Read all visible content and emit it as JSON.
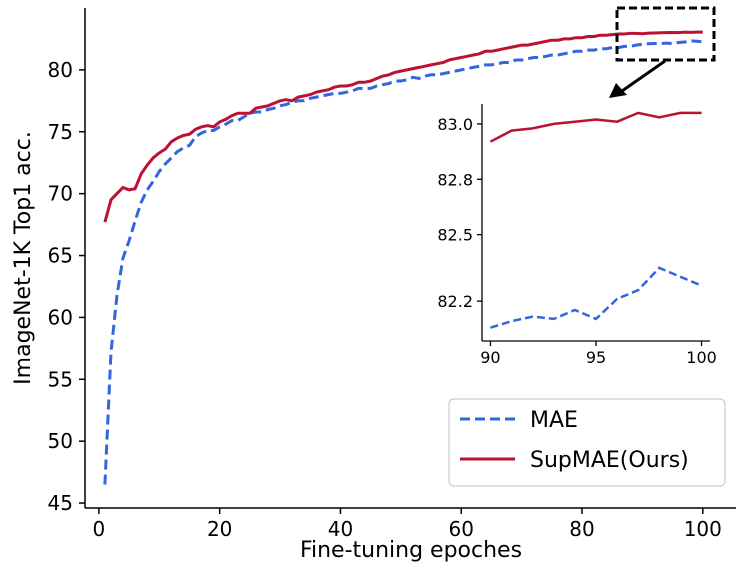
{
  "chart_data": {
    "type": "line",
    "xlabel": "Fine-tuning epoches",
    "ylabel": "ImageNet-1K Top1 acc.",
    "xlim": [
      -2.3,
      105.5
    ],
    "ylim": [
      44.6,
      85.0
    ],
    "xticks": [
      0,
      20,
      40,
      60,
      80,
      100
    ],
    "yticks": [
      45,
      50,
      55,
      60,
      65,
      70,
      75,
      80
    ],
    "legend_position": "lower-right",
    "series": [
      {
        "name": "MAE",
        "color": "#3366dd",
        "style": "dashed",
        "x": [
          1,
          2,
          3,
          4,
          5,
          6,
          7,
          8,
          9,
          10,
          11,
          12,
          13,
          14,
          15,
          16,
          17,
          18,
          19,
          20,
          21,
          22,
          23,
          24,
          25,
          26,
          27,
          28,
          29,
          30,
          31,
          32,
          33,
          34,
          35,
          36,
          37,
          38,
          39,
          40,
          41,
          42,
          43,
          44,
          45,
          46,
          47,
          48,
          49,
          50,
          51,
          52,
          53,
          54,
          55,
          56,
          57,
          58,
          59,
          60,
          61,
          62,
          63,
          64,
          65,
          66,
          67,
          68,
          69,
          70,
          71,
          72,
          73,
          74,
          75,
          76,
          77,
          78,
          79,
          80,
          81,
          82,
          83,
          84,
          85,
          86,
          87,
          88,
          89,
          90,
          91,
          92,
          93,
          94,
          95,
          96,
          97,
          98,
          99,
          100
        ],
        "y": [
          46.5,
          57.2,
          61.8,
          64.8,
          66.2,
          67.8,
          69.3,
          70.3,
          71.0,
          71.8,
          72.4,
          72.9,
          73.4,
          73.7,
          73.9,
          74.6,
          74.9,
          75.1,
          75.1,
          75.4,
          75.6,
          75.9,
          75.9,
          76.2,
          76.5,
          76.6,
          76.6,
          76.8,
          76.9,
          77.1,
          77.2,
          77.4,
          77.5,
          77.5,
          77.7,
          77.8,
          77.9,
          78.0,
          78.1,
          78.1,
          78.2,
          78.3,
          78.5,
          78.5,
          78.5,
          78.7,
          78.8,
          78.9,
          79.1,
          79.1,
          79.2,
          79.4,
          79.3,
          79.5,
          79.6,
          79.6,
          79.7,
          79.8,
          79.9,
          80.0,
          80.1,
          80.2,
          80.3,
          80.4,
          80.4,
          80.5,
          80.6,
          80.6,
          80.8,
          80.8,
          80.9,
          81.0,
          81.0,
          81.1,
          81.2,
          81.2,
          81.3,
          81.4,
          81.5,
          81.5,
          81.6,
          81.6,
          81.7,
          81.7,
          81.8,
          81.8,
          81.9,
          81.9,
          82.0,
          82.08,
          82.11,
          82.13,
          82.12,
          82.16,
          82.12,
          82.21,
          82.25,
          82.35,
          82.31,
          82.27
        ]
      },
      {
        "name": "SupMAE(Ours)",
        "color": "#bb1133",
        "style": "solid",
        "x": [
          1,
          2,
          3,
          4,
          5,
          6,
          7,
          8,
          9,
          10,
          11,
          12,
          13,
          14,
          15,
          16,
          17,
          18,
          19,
          20,
          21,
          22,
          23,
          24,
          25,
          26,
          27,
          28,
          29,
          30,
          31,
          32,
          33,
          34,
          35,
          36,
          37,
          38,
          39,
          40,
          41,
          42,
          43,
          44,
          45,
          46,
          47,
          48,
          49,
          50,
          51,
          52,
          53,
          54,
          55,
          56,
          57,
          58,
          59,
          60,
          61,
          62,
          63,
          64,
          65,
          66,
          67,
          68,
          69,
          70,
          71,
          72,
          73,
          74,
          75,
          76,
          77,
          78,
          79,
          80,
          81,
          82,
          83,
          84,
          85,
          86,
          87,
          88,
          89,
          90,
          91,
          92,
          93,
          94,
          95,
          96,
          97,
          98,
          99,
          100
        ],
        "y": [
          67.7,
          69.5,
          70.0,
          70.5,
          70.3,
          70.4,
          71.6,
          72.3,
          72.9,
          73.3,
          73.6,
          74.2,
          74.5,
          74.7,
          74.8,
          75.2,
          75.4,
          75.5,
          75.4,
          75.8,
          76.0,
          76.3,
          76.5,
          76.5,
          76.5,
          76.9,
          77.0,
          77.1,
          77.3,
          77.5,
          77.6,
          77.5,
          77.8,
          77.9,
          78.0,
          78.2,
          78.3,
          78.4,
          78.6,
          78.7,
          78.7,
          78.8,
          79.0,
          79.0,
          79.1,
          79.3,
          79.5,
          79.6,
          79.8,
          79.9,
          80.0,
          80.1,
          80.2,
          80.3,
          80.4,
          80.5,
          80.6,
          80.8,
          80.9,
          81.0,
          81.1,
          81.2,
          81.3,
          81.5,
          81.5,
          81.6,
          81.7,
          81.8,
          81.9,
          82.0,
          82.0,
          82.1,
          82.2,
          82.3,
          82.4,
          82.4,
          82.5,
          82.5,
          82.6,
          82.6,
          82.7,
          82.7,
          82.8,
          82.8,
          82.85,
          82.9,
          82.9,
          82.95,
          82.95,
          82.92,
          82.97,
          82.98,
          83.0,
          83.01,
          83.02,
          83.01,
          83.05,
          83.03,
          83.05,
          83.05
        ]
      }
    ],
    "inset": {
      "xlim": [
        89.6,
        100.4
      ],
      "ylim": [
        82.02,
        83.09
      ],
      "xticks": [
        90,
        95,
        100
      ],
      "yticks": [
        {
          "value": 82.2,
          "label": "82.2"
        },
        {
          "value": 82.5,
          "label": "82.5"
        },
        {
          "value": 82.75,
          "label": "82.8"
        },
        {
          "value": 83.0,
          "label": "83.0"
        }
      ]
    }
  }
}
